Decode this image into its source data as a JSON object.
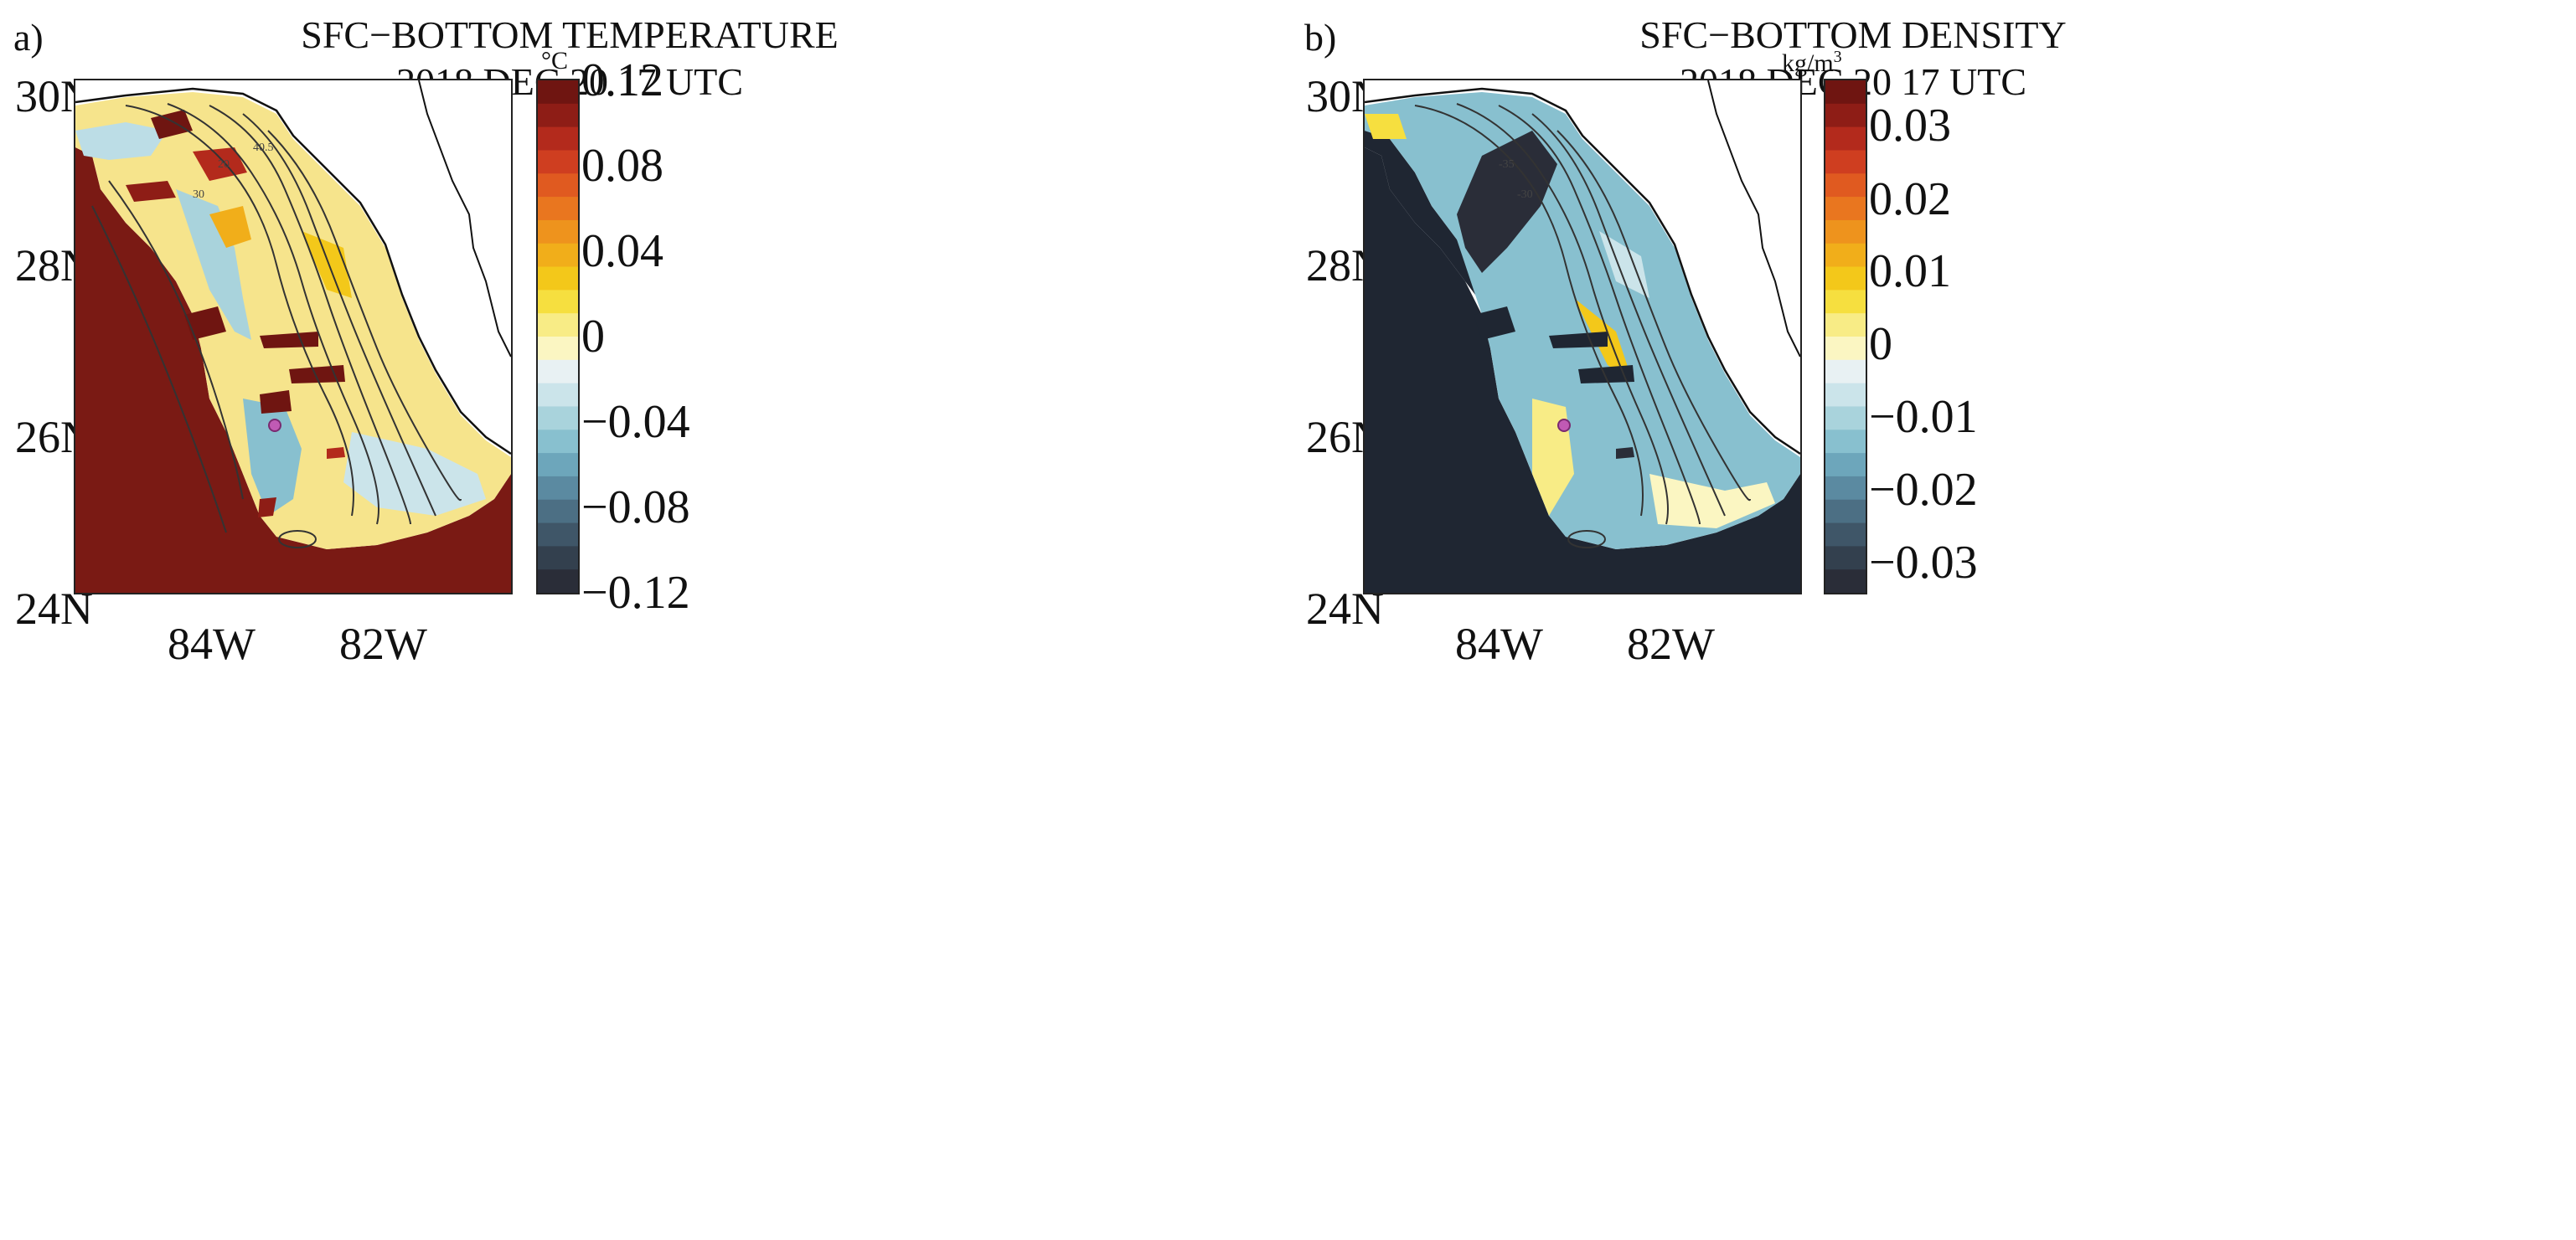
{
  "panels": [
    {
      "label": "a)",
      "title_line1": "SFC−BOTTOM TEMPERATURE",
      "title_line2": "2018 DEC 20  17 UTC",
      "unit": "°C",
      "colorbar_ticks": [
        "0.12",
        "0.08",
        "0.04",
        "0",
        "−0.04",
        "−0.08",
        "−0.12"
      ],
      "colorbar_range": [
        -0.12,
        0.12
      ],
      "offshore_fill": "#7a1a14",
      "contour_labels": [
        "40.5",
        "20",
        "30"
      ]
    },
    {
      "label": "b)",
      "title_line1": "SFC−BOTTOM DENSITY",
      "title_line2": "2018 DEC 20  17 UTC",
      "unit_base": "kg/m",
      "unit_sup": "3",
      "colorbar_ticks": [
        "0.03",
        "0.02",
        "0.01",
        "0",
        "−0.01",
        "−0.02",
        "−0.03"
      ],
      "colorbar_range": [
        -0.035,
        0.035
      ],
      "offshore_fill": "#1f2632",
      "contour_labels": [
        "-35",
        "-30"
      ]
    }
  ],
  "lat_ticks": [
    "30N",
    "28N",
    "26N",
    "24N"
  ],
  "lon_ticks": [
    "84W",
    "82W"
  ],
  "colormap": [
    "#2a2d38",
    "#33404e",
    "#3f5668",
    "#4c6f84",
    "#5b8aa1",
    "#6da6bb",
    "#88c0cf",
    "#a9d3dc",
    "#cbe4ea",
    "#e8f1f3",
    "#fbf6c2",
    "#f8ec86",
    "#f6df3f",
    "#f3c81a",
    "#f1ae1a",
    "#ee931d",
    "#e9761f",
    "#e05a20",
    "#cf3e20",
    "#b32a1c",
    "#8e1d16",
    "#6f1511"
  ]
}
